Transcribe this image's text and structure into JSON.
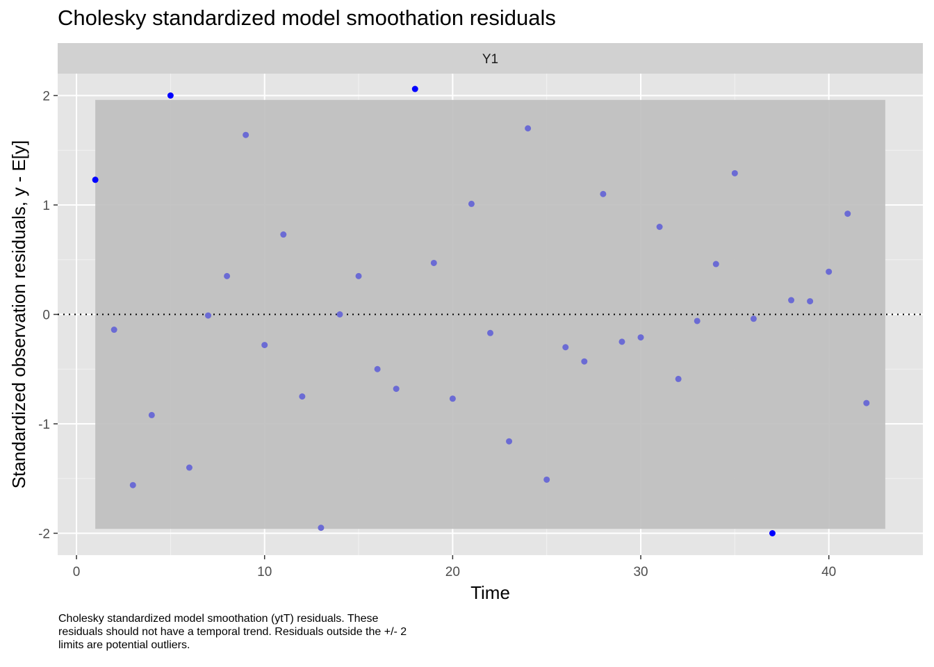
{
  "title": "Cholesky standardized model smoothation residuals",
  "caption_lines": [
    "Cholesky standardized model smoothation (ytT) residuals. These",
    "residuals should not have a temporal trend. Residuals outside the +/- 2",
    "limits are potential outliers."
  ],
  "chart_data": {
    "type": "scatter",
    "facet_label": "Y1",
    "xlabel": "Time",
    "ylabel": "Standardized observation residuals, y - E[y]",
    "xlim": [
      -1,
      45
    ],
    "ylim": [
      -2.2,
      2.2
    ],
    "x_ticks": [
      0,
      10,
      20,
      30,
      40
    ],
    "y_ticks": [
      -2,
      -1,
      0,
      1,
      2
    ],
    "x_tick_labels": [
      "0",
      "10",
      "20",
      "30",
      "40"
    ],
    "y_tick_labels": [
      "-2",
      "-1",
      "0",
      "1",
      "2"
    ],
    "band": {
      "x": [
        1,
        43
      ],
      "y": [
        -1.96,
        1.96
      ],
      "color": "#bebebe"
    },
    "reference_line": {
      "y": 0,
      "style": "dotted"
    },
    "panel_background": "#e5e5e5",
    "strip_background": "#d1d1d1",
    "point_color": "#0000ff",
    "inside_point_color": "#6b6bd4",
    "x": [
      1,
      2,
      3,
      4,
      5,
      6,
      7,
      8,
      9,
      10,
      11,
      12,
      13,
      14,
      15,
      16,
      17,
      18,
      19,
      20,
      21,
      22,
      23,
      24,
      25,
      26,
      27,
      28,
      29,
      30,
      31,
      32,
      33,
      34,
      35,
      36,
      37,
      38,
      39,
      40,
      41,
      42
    ],
    "y": [
      1.23,
      -0.14,
      -1.56,
      -0.92,
      2.0,
      -1.4,
      -0.01,
      0.35,
      1.64,
      -0.28,
      0.73,
      -0.75,
      -1.95,
      0.0,
      0.35,
      -0.5,
      -0.68,
      2.06,
      0.47,
      -0.77,
      1.01,
      -0.17,
      -1.16,
      1.7,
      -1.51,
      -0.3,
      -0.43,
      1.1,
      -0.25,
      -0.21,
      0.8,
      -0.59,
      -0.06,
      0.46,
      1.29,
      -0.04,
      -2.0,
      0.13,
      0.12,
      0.39,
      0.92,
      -0.81
    ]
  }
}
